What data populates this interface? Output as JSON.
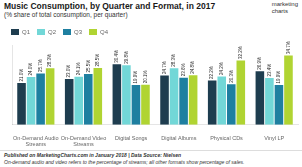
{
  "chart_data": {
    "type": "bar",
    "title": "Music Consumption, by Quarter and Format, in 2017",
    "subtitle": "(% share of total consumption, per quarter)",
    "annotations": [
      "marketing",
      "charts"
    ],
    "footnotes": [
      "Published on MarketingCharts.com in January 2018 | Data Source: Nielsen",
      "On-demand audio and video refers to the percentage of streams; all other formats show percentage of sales."
    ],
    "categories": [
      "On-Demand Audio\nStreams",
      "On-Demand Video\nStreams",
      "Digital Songs",
      "Digital Albums",
      "Physical CDs",
      "Vinyl LP"
    ],
    "series": [
      {
        "name": "Q1",
        "color": "#1e3d4f",
        "values": [
          21.0,
          23.0,
          30.4,
          24.7,
          22.2,
          26.9
        ],
        "value_labels": [
          "21.0%",
          "23.0%",
          "30.4%",
          "24.7%",
          "22.2%",
          "26.9%"
        ]
      },
      {
        "name": "Q2",
        "color": "#72d7d7",
        "values": [
          24.0,
          24.1,
          29.8,
          28.3,
          24.2,
          23.4
        ],
        "value_labels": [
          "24.0%",
          "24.1%",
          "29.8%",
          "28.3%",
          "24.2%",
          "23.4%"
        ]
      },
      {
        "name": "Q3",
        "color": "#1e7fa0",
        "values": [
          25.7,
          25.5,
          19.9,
          23.6,
          20.3,
          19.9
        ],
        "value_labels": [
          "25.7%",
          "25.5%",
          "19.9%",
          "23.6%",
          "20.3%",
          "19.9%"
        ]
      },
      {
        "name": "Q4",
        "color": "#b0d432",
        "values": [
          28.3,
          28.5,
          20.1,
          24.8,
          32.2,
          34.7
        ],
        "value_labels": [
          "28.3%",
          "28.5%",
          "20.1%",
          "24.8%",
          "32.2%",
          "34.7%"
        ]
      }
    ],
    "ylim": [
      0,
      40
    ],
    "yticks": [],
    "tick_labels": "x",
    "grid": false,
    "legend": "top",
    "data_labels": true
  }
}
